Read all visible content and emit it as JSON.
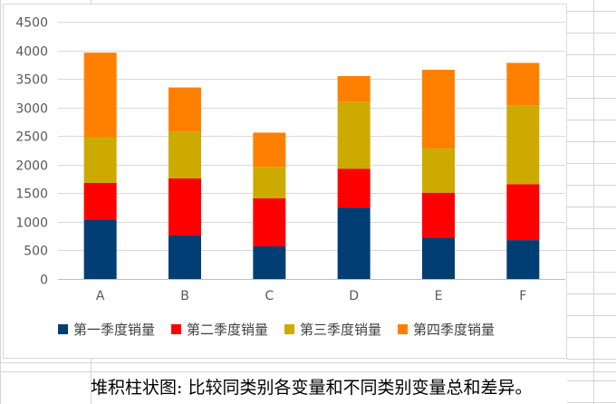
{
  "chart_data": {
    "type": "stacked_bar",
    "categories": [
      "A",
      "B",
      "C",
      "D",
      "E",
      "F"
    ],
    "series": [
      {
        "name": "第一季度销量",
        "color": "#003e73",
        "values": [
          1030,
          760,
          570,
          1250,
          720,
          680
        ]
      },
      {
        "name": "第二季度销量",
        "color": "#ff0000",
        "values": [
          650,
          1000,
          840,
          680,
          790,
          980
        ]
      },
      {
        "name": "第三季度销量",
        "color": "#ccaa00",
        "values": [
          800,
          820,
          550,
          1170,
          770,
          1380
        ]
      },
      {
        "name": "第四季度销量",
        "color": "#ff8000",
        "values": [
          1480,
          770,
          600,
          450,
          1380,
          740
        ]
      }
    ],
    "ylim": [
      0,
      4500
    ],
    "yticks": [
      "0",
      "500",
      "1000",
      "1500",
      "2000",
      "2500",
      "3000",
      "3500",
      "4000",
      "4500"
    ],
    "grid": true,
    "legend_position": "bottom",
    "title": "",
    "xlabel": "",
    "ylabel": ""
  },
  "caption": "堆积柱状图: 比较同类别各变量和不同类别变量总和差异。"
}
